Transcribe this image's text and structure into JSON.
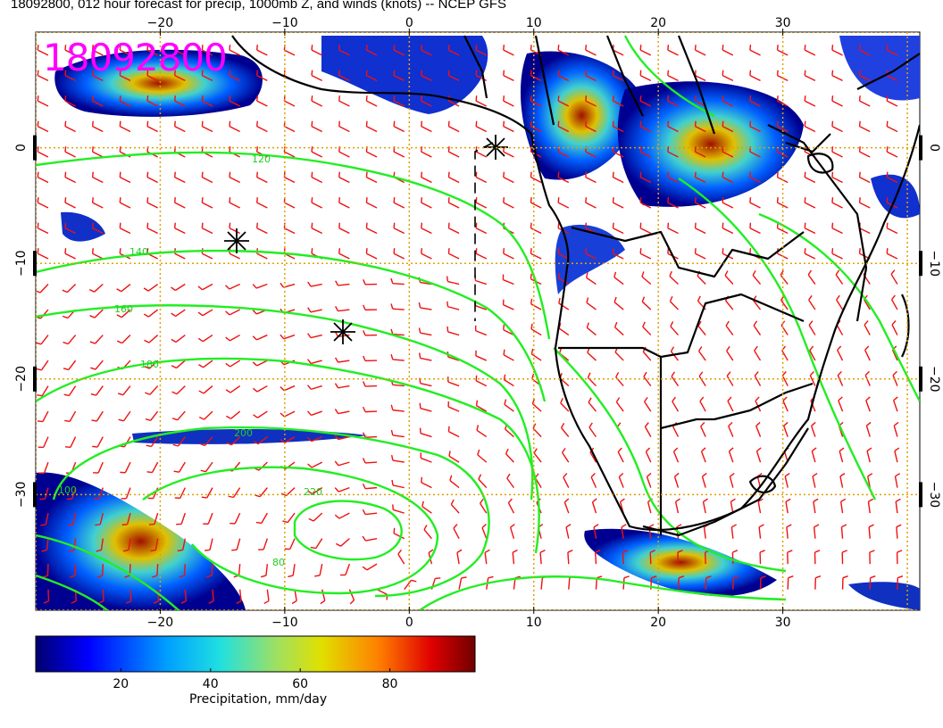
{
  "header": {
    "title": "18092800, 012 hour forecast for precip, 1000mb Z, and winds (knots) -- NCEP GFS",
    "stamp": "18092800"
  },
  "map": {
    "lon_range": [
      -30,
      41
    ],
    "lat_range": [
      -40,
      10
    ],
    "x_ticks": [
      {
        "value": -20,
        "label": "−20"
      },
      {
        "value": -10,
        "label": "−10"
      },
      {
        "value": 0,
        "label": "0"
      },
      {
        "value": 10,
        "label": "10"
      },
      {
        "value": 20,
        "label": "20"
      },
      {
        "value": 30,
        "label": "30"
      }
    ],
    "y_ticks": [
      {
        "value": 0,
        "label": "0"
      },
      {
        "value": -10,
        "label": "−10"
      },
      {
        "value": -20,
        "label": "−20"
      },
      {
        "value": -30,
        "label": "−30"
      }
    ],
    "grid_color": "#e0a000",
    "contour_color": "#22ee22",
    "barb_color": "#ee1111",
    "coast_color": "#000000",
    "stamp_color": "#ff00ff",
    "contour_labels": [
      "120",
      "140",
      "160",
      "180",
      "200",
      "220",
      "100",
      "80"
    ]
  },
  "colorbar": {
    "title": "Precipitation, mm/day",
    "ticks": [
      {
        "value": 20,
        "label": "20"
      },
      {
        "value": 40,
        "label": "40"
      },
      {
        "value": 60,
        "label": "60"
      },
      {
        "value": 80,
        "label": "80"
      }
    ],
    "range": [
      1,
      99
    ]
  }
}
